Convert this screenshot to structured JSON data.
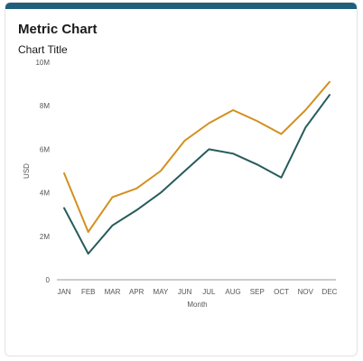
{
  "card": {
    "title": "Metric Chart",
    "accent_color": "#1f5f7a"
  },
  "chart_data": {
    "type": "line",
    "title": "Chart Title",
    "xlabel": "Month",
    "ylabel": "USD",
    "categories": [
      "JAN",
      "FEB",
      "MAR",
      "APR",
      "MAY",
      "JUN",
      "JUL",
      "AUG",
      "SEP",
      "OCT",
      "NOV",
      "DEC"
    ],
    "y_ticks": [
      "0",
      "2M",
      "4M",
      "6M",
      "8M",
      "10M"
    ],
    "ylim": [
      0,
      10000000
    ],
    "grid": false,
    "series": [
      {
        "color": "#d3901f",
        "values": [
          4900000,
          2200000,
          3800000,
          4200000,
          5000000,
          6400000,
          7200000,
          7800000,
          7300000,
          6700000,
          7800000,
          9100000
        ]
      },
      {
        "color": "#275c5a",
        "values": [
          3300000,
          1200000,
          2500000,
          3200000,
          4000000,
          5000000,
          6000000,
          5800000,
          5300000,
          4700000,
          7000000,
          8500000
        ]
      }
    ]
  }
}
